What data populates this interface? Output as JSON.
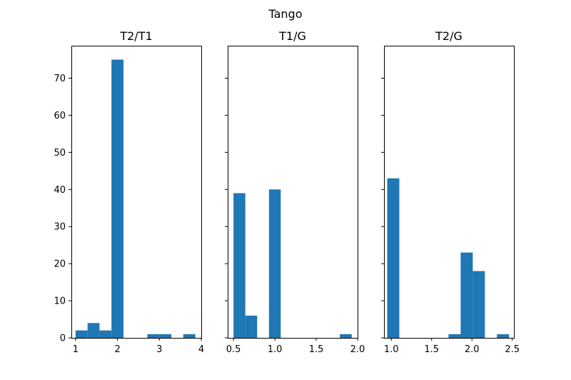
{
  "chart_data": {
    "title": "Tango",
    "type": "bar",
    "shared_y": true,
    "ylim": [
      0,
      78.75
    ],
    "yticks": [
      0,
      10,
      20,
      30,
      40,
      50,
      60,
      70
    ],
    "bar_color": "#1f77b4",
    "grid": false,
    "panels": [
      {
        "type": "bar",
        "title": "T2/T1",
        "xlim": [
          0.9,
          4.0
        ],
        "xticks": [
          1,
          2,
          3,
          4
        ],
        "bins": [
          {
            "x0": 1.0,
            "x1": 1.286,
            "count": 2
          },
          {
            "x0": 1.286,
            "x1": 1.571,
            "count": 4
          },
          {
            "x0": 1.571,
            "x1": 1.857,
            "count": 2
          },
          {
            "x0": 1.857,
            "x1": 2.143,
            "count": 75
          },
          {
            "x0": 2.714,
            "x1": 3.0,
            "count": 1
          },
          {
            "x0": 3.0,
            "x1": 3.286,
            "count": 1
          },
          {
            "x0": 3.571,
            "x1": 3.857,
            "count": 1
          }
        ]
      },
      {
        "type": "bar",
        "title": "T1/G",
        "xlim": [
          0.43,
          2.0
        ],
        "xticks": [
          0.5,
          1.0,
          1.5,
          2.0
        ],
        "bins": [
          {
            "x0": 0.5,
            "x1": 0.643,
            "count": 39
          },
          {
            "x0": 0.643,
            "x1": 0.786,
            "count": 6
          },
          {
            "x0": 0.929,
            "x1": 1.071,
            "count": 40
          },
          {
            "x0": 1.786,
            "x1": 1.929,
            "count": 1
          }
        ]
      },
      {
        "type": "bar",
        "title": "T2/G",
        "xlim": [
          0.91,
          2.52
        ],
        "xticks": [
          1.0,
          1.5,
          2.0,
          2.5
        ],
        "bins": [
          {
            "x0": 0.95,
            "x1": 1.1,
            "count": 43
          },
          {
            "x0": 1.71,
            "x1": 1.86,
            "count": 1
          },
          {
            "x0": 1.86,
            "x1": 2.01,
            "count": 23
          },
          {
            "x0": 2.01,
            "x1": 2.16,
            "count": 18
          },
          {
            "x0": 2.31,
            "x1": 2.46,
            "count": 1
          }
        ]
      }
    ]
  }
}
